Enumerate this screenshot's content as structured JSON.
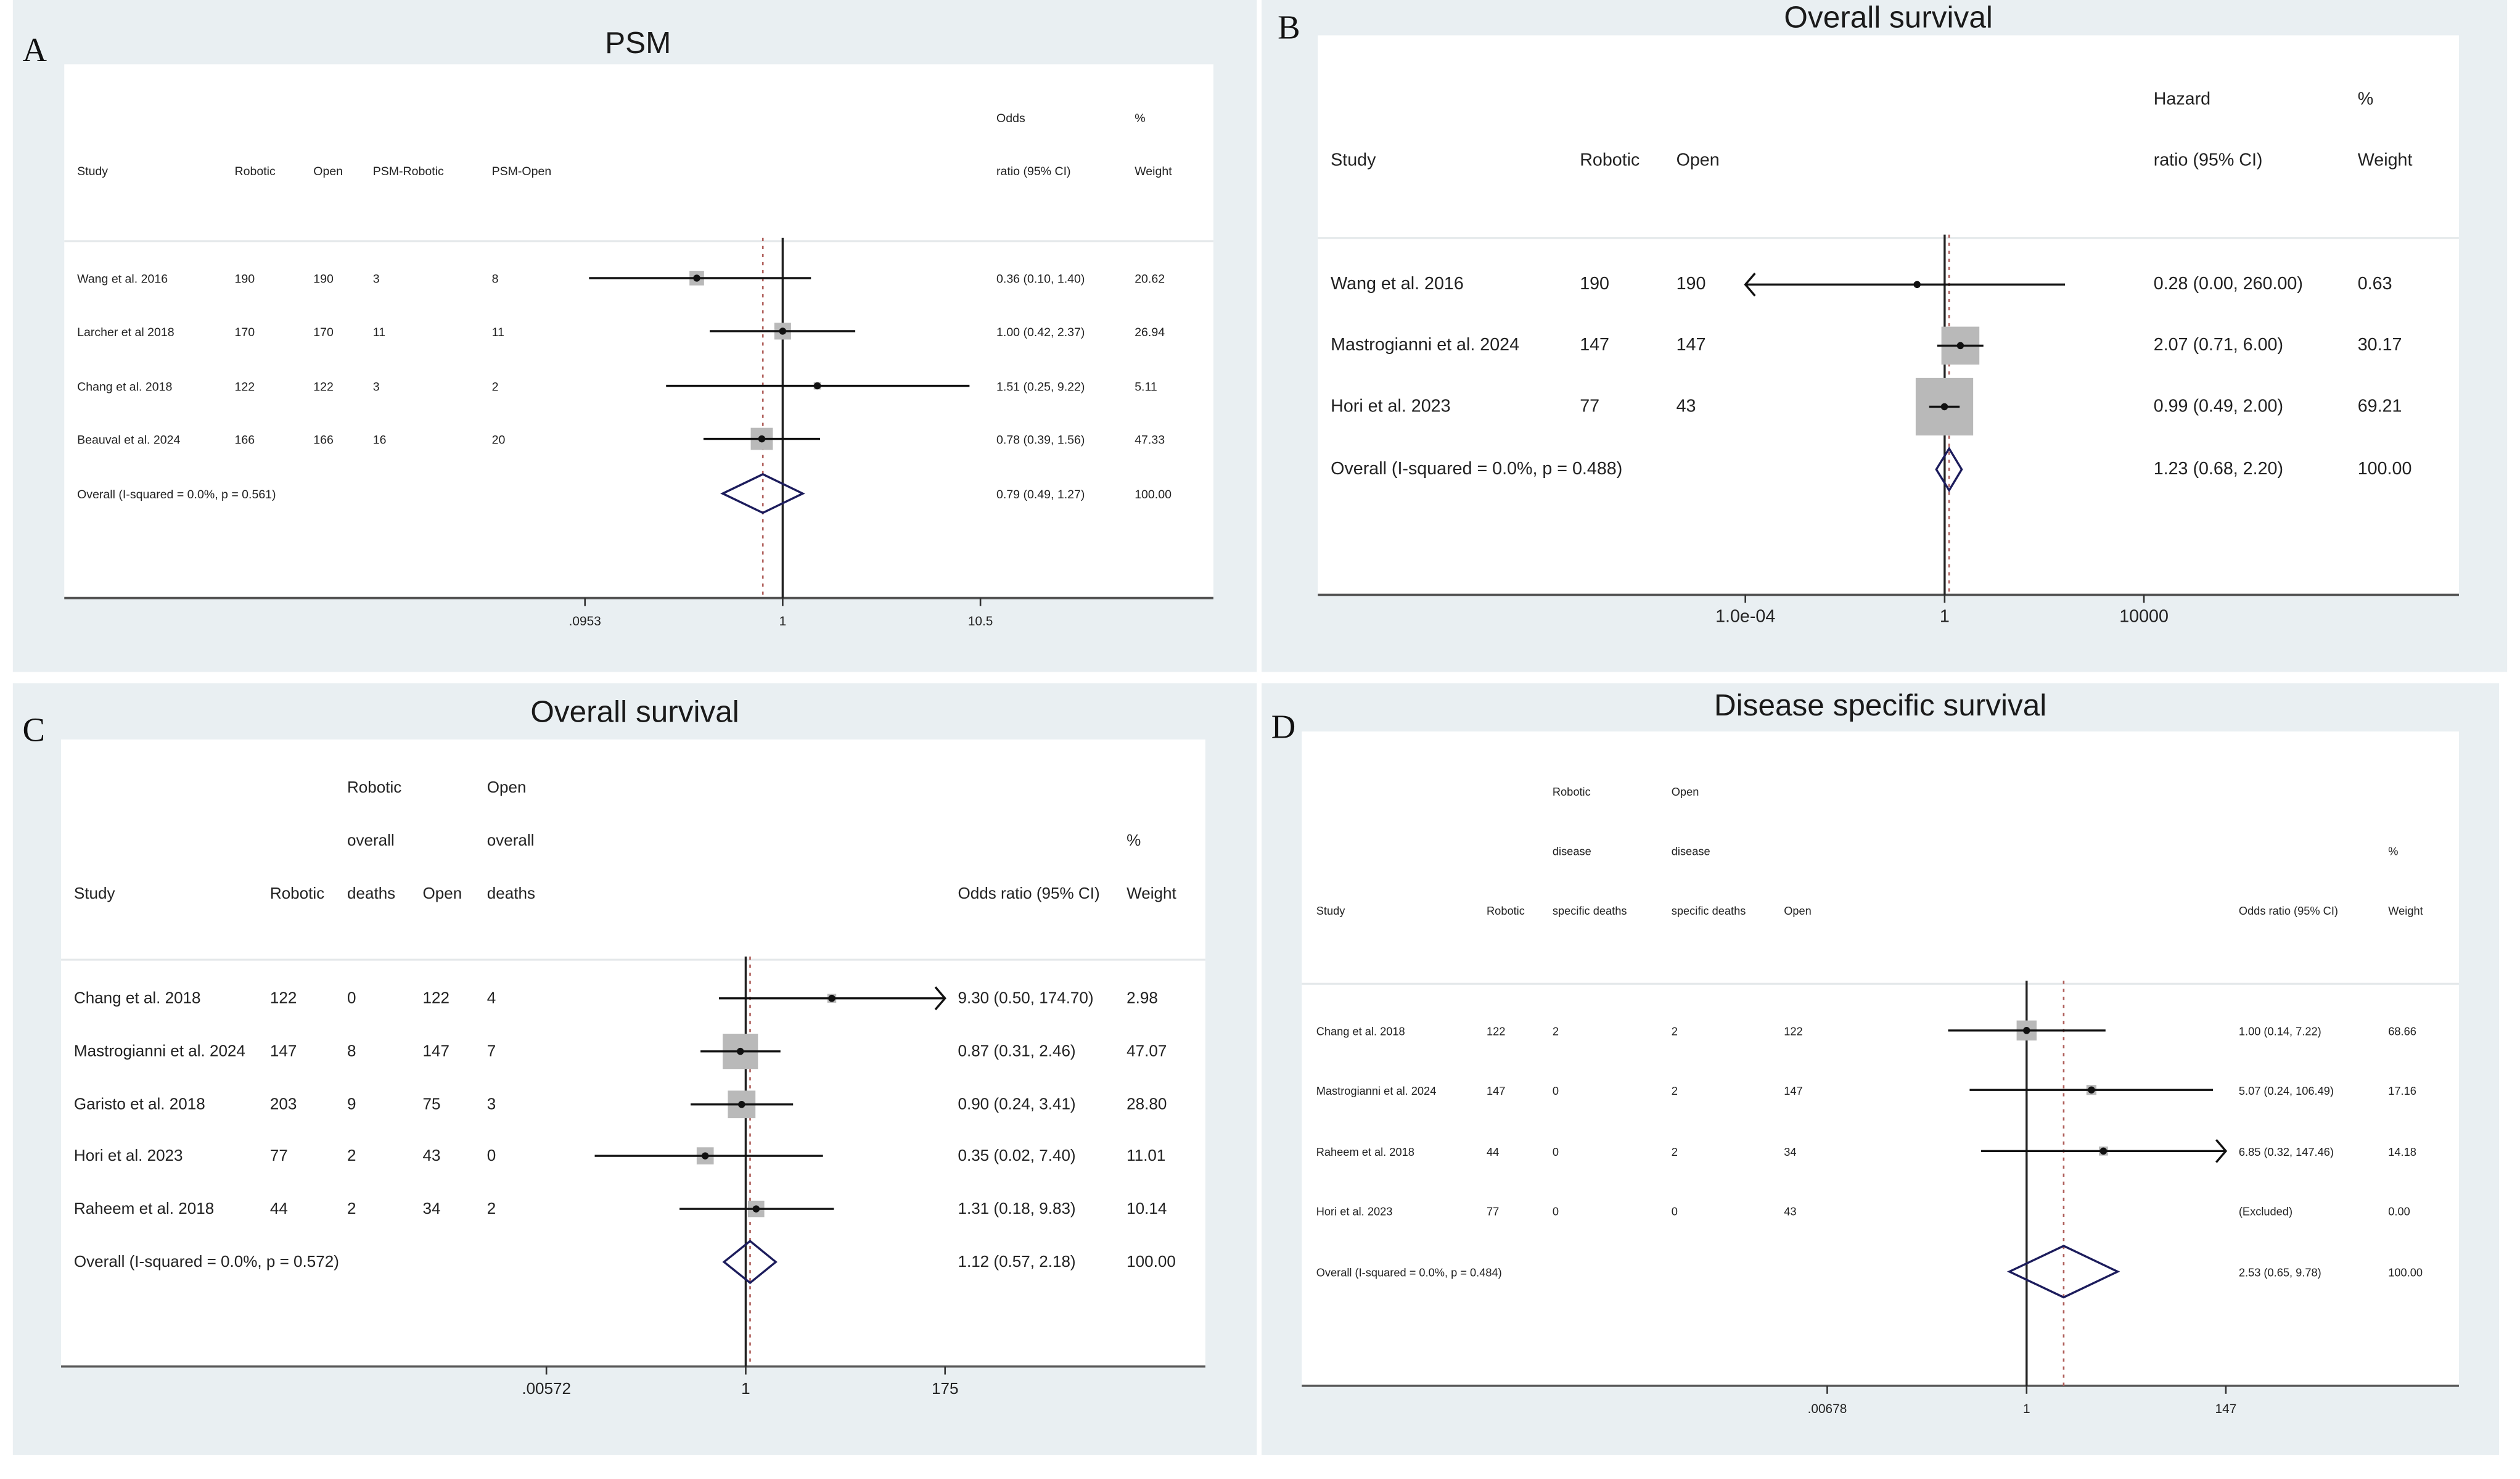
{
  "chart_data": [
    {
      "type": "forest",
      "panel_label": "A",
      "title": "PSM",
      "scale": "log",
      "xlim": [
        0.0953,
        10.5
      ],
      "x_ticks": [
        {
          "value": 0.0953,
          "label": ".0953"
        },
        {
          "value": 1,
          "label": "1"
        },
        {
          "value": 10.5,
          "label": "10.5"
        }
      ],
      "headers": [
        [
          "Study"
        ],
        [
          "Robotic"
        ],
        [
          "Open"
        ],
        [
          "PSM-Robotic"
        ],
        [
          "PSM-Open"
        ],
        [
          "Odds",
          "ratio (95% CI)"
        ],
        [
          "%",
          "Weight"
        ]
      ],
      "rows": [
        {
          "cells": [
            "Wang et al. 2016",
            "190",
            "190",
            "3",
            "8",
            "0.36 (0.10, 1.40)",
            "20.62"
          ],
          "estimate": 0.36,
          "lower": 0.1,
          "upper": 1.4,
          "weight": 20.62
        },
        {
          "cells": [
            "Larcher et al 2018",
            "170",
            "170",
            "11",
            "11",
            "1.00 (0.42, 2.37)",
            "26.94"
          ],
          "estimate": 1.0,
          "lower": 0.42,
          "upper": 2.37,
          "weight": 26.94
        },
        {
          "cells": [
            "Chang et al. 2018",
            "122",
            "122",
            "3",
            "2",
            "1.51 (0.25, 9.22)",
            "5.11"
          ],
          "estimate": 1.51,
          "lower": 0.25,
          "upper": 9.22,
          "weight": 5.11
        },
        {
          "cells": [
            "Beauval et al. 2024",
            "166",
            "166",
            "16",
            "20",
            "0.78 (0.39, 1.56)",
            "47.33"
          ],
          "estimate": 0.78,
          "lower": 0.39,
          "upper": 1.56,
          "weight": 47.33
        }
      ],
      "overall": {
        "label": "Overall  (I-squared = 0.0%, p = 0.561)",
        "ci_text": "0.79 (0.49, 1.27)",
        "weight_text": "100.00",
        "estimate": 0.79,
        "lower": 0.49,
        "upper": 1.27
      }
    },
    {
      "type": "forest",
      "panel_label": "B",
      "title": "Overall survival",
      "scale": "log",
      "xlim": [
        0.0001,
        10000
      ],
      "x_ticks": [
        {
          "value": 0.0001,
          "label": "1.0e-04"
        },
        {
          "value": 1,
          "label": "1"
        },
        {
          "value": 10000,
          "label": "10000"
        }
      ],
      "headers": [
        [
          "Study"
        ],
        [
          "Robotic"
        ],
        [
          "Open"
        ],
        [
          "Hazard",
          "ratio (95% CI)"
        ],
        [
          "%",
          "Weight"
        ]
      ],
      "rows": [
        {
          "cells": [
            "Wang et al. 2016",
            "190",
            "190",
            "0.28 (0.00, 260.00)",
            "0.63"
          ],
          "estimate": 0.28,
          "lower": 0.0,
          "upper": 260.0,
          "weight": 0.63
        },
        {
          "cells": [
            "Mastrogianni et al. 2024",
            "147",
            "147",
            "2.07 (0.71, 6.00)",
            "30.17"
          ],
          "estimate": 2.07,
          "lower": 0.71,
          "upper": 6.0,
          "weight": 30.17
        },
        {
          "cells": [
            "Hori et al. 2023",
            "77",
            "43",
            "0.99 (0.49, 2.00)",
            "69.21"
          ],
          "estimate": 0.99,
          "lower": 0.49,
          "upper": 2.0,
          "weight": 69.21
        }
      ],
      "overall": {
        "label": "Overall  (I-squared = 0.0%, p = 0.488)",
        "ci_text": "1.23 (0.68, 2.20)",
        "weight_text": "100.00",
        "estimate": 1.23,
        "lower": 0.68,
        "upper": 2.2
      }
    },
    {
      "type": "forest",
      "panel_label": "C",
      "title": "Overall survival",
      "scale": "log",
      "xlim": [
        0.00572,
        175
      ],
      "x_ticks": [
        {
          "value": 0.00572,
          "label": ".00572"
        },
        {
          "value": 1,
          "label": "1"
        },
        {
          "value": 175,
          "label": "175"
        }
      ],
      "headers": [
        [
          "Study"
        ],
        [
          "Robotic"
        ],
        [
          "Robotic",
          "overall",
          "deaths"
        ],
        [
          "Open"
        ],
        [
          "Open",
          "overall",
          "deaths"
        ],
        [
          "Odds ratio (95% CI)"
        ],
        [
          "%",
          "Weight"
        ]
      ],
      "rows": [
        {
          "cells": [
            "Chang et al. 2018",
            "122",
            "0",
            "122",
            "4",
            "9.30 (0.50, 174.70)",
            "2.98"
          ],
          "estimate": 9.3,
          "lower": 0.5,
          "upper": 174.7,
          "weight": 2.98
        },
        {
          "cells": [
            "Mastrogianni et al. 2024",
            "147",
            "8",
            "147",
            "7",
            "0.87 (0.31, 2.46)",
            "47.07"
          ],
          "estimate": 0.87,
          "lower": 0.31,
          "upper": 2.46,
          "weight": 47.07
        },
        {
          "cells": [
            "Garisto et al. 2018",
            "203",
            "9",
            "75",
            "3",
            "0.90 (0.24, 3.41)",
            "28.80"
          ],
          "estimate": 0.9,
          "lower": 0.24,
          "upper": 3.41,
          "weight": 28.8
        },
        {
          "cells": [
            "Hori et al. 2023",
            "77",
            "2",
            "43",
            "0",
            "0.35 (0.02, 7.40)",
            "11.01"
          ],
          "estimate": 0.35,
          "lower": 0.02,
          "upper": 7.4,
          "weight": 11.01
        },
        {
          "cells": [
            "Raheem et al. 2018",
            "44",
            "2",
            "34",
            "2",
            "1.31 (0.18, 9.83)",
            "10.14"
          ],
          "estimate": 1.31,
          "lower": 0.18,
          "upper": 9.83,
          "weight": 10.14
        }
      ],
      "overall": {
        "label": "Overall  (I-squared = 0.0%, p = 0.572)",
        "ci_text": "1.12 (0.57, 2.18)",
        "weight_text": "100.00",
        "estimate": 1.12,
        "lower": 0.57,
        "upper": 2.18
      }
    },
    {
      "type": "forest",
      "panel_label": "D",
      "title": "Disease specific survival",
      "scale": "log",
      "xlim": [
        0.00678,
        147
      ],
      "x_ticks": [
        {
          "value": 0.00678,
          "label": ".00678"
        },
        {
          "value": 1,
          "label": "1"
        },
        {
          "value": 147,
          "label": "147"
        }
      ],
      "headers": [
        [
          "Study"
        ],
        [
          "Robotic"
        ],
        [
          "Robotic",
          "disease",
          "specific deaths"
        ],
        [
          "Open",
          "disease",
          "specific deaths"
        ],
        [
          "Open"
        ],
        [
          "Odds ratio (95% CI)"
        ],
        [
          "%",
          "Weight"
        ]
      ],
      "rows": [
        {
          "cells": [
            "Chang et al. 2018",
            "122",
            "2",
            "2",
            "122",
            "1.00 (0.14, 7.22)",
            "68.66"
          ],
          "estimate": 1.0,
          "lower": 0.14,
          "upper": 7.22,
          "weight": 68.66
        },
        {
          "cells": [
            "Mastrogianni et al. 2024",
            "147",
            "0",
            "2",
            "147",
            "5.07 (0.24, 106.49)",
            "17.16"
          ],
          "estimate": 5.07,
          "lower": 0.24,
          "upper": 106.49,
          "weight": 17.16
        },
        {
          "cells": [
            "Raheem et al. 2018",
            "44",
            "0",
            "2",
            "34",
            "6.85 (0.32, 147.46)",
            "14.18"
          ],
          "estimate": 6.85,
          "lower": 0.32,
          "upper": 147.46,
          "weight": 14.18
        },
        {
          "cells": [
            "Hori et al. 2023",
            "77",
            "0",
            "0",
            "43",
            "(Excluded)",
            "0.00"
          ],
          "estimate": null,
          "lower": null,
          "upper": null,
          "weight": 0
        }
      ],
      "overall": {
        "label": "Overall  (I-squared = 0.0%, p = 0.484)",
        "ci_text": "2.53 (0.65, 9.78)",
        "weight_text": "100.00",
        "estimate": 2.53,
        "lower": 0.65,
        "upper": 9.78
      }
    }
  ]
}
